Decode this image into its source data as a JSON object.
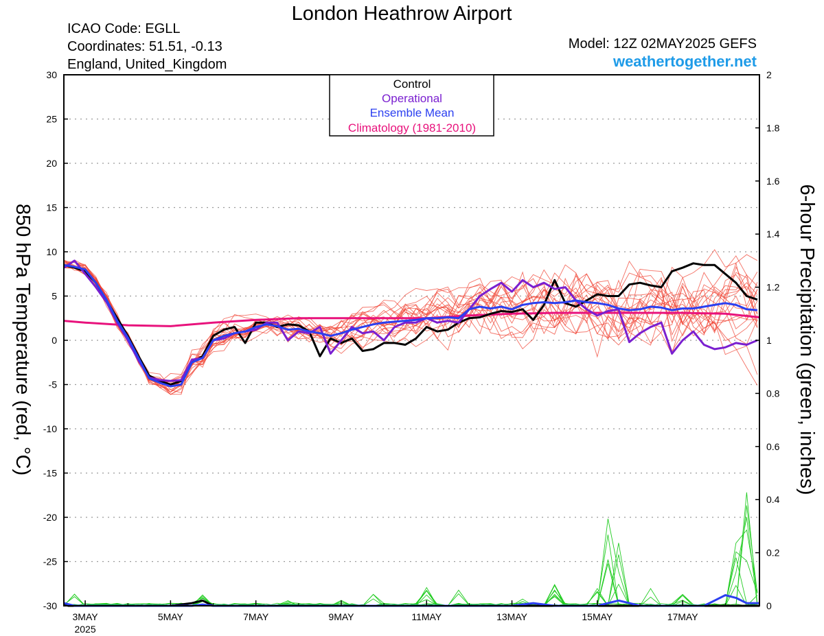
{
  "header": {
    "title": "London Heathrow Airport",
    "icao": "ICAO Code: EGLL",
    "coords": "Coordinates: 51.51, -0.13",
    "region": "England, United_Kingdom",
    "model": "Model: 12Z 02MAY2025 GEFS",
    "site": "weathertogether.net"
  },
  "legend": {
    "control": "Control",
    "operational": "Operational",
    "ensemble_mean": "Ensemble Mean",
    "climatology": "Climatology (1981-2010)"
  },
  "colors": {
    "control": "#000000",
    "operational": "#7a1fd0",
    "ensemble_mean": "#2b3ff0",
    "climatology": "#e8127c",
    "members": "#f04030",
    "precip": "#22cc22",
    "site": "#1e9be8"
  },
  "chart_data": {
    "type": "line",
    "ylabel_left": "850 hPa Temperature (red, °C)",
    "ylabel_right": "6-hour Precipitation (green, inches)",
    "y_left_range": [
      -30,
      30
    ],
    "y_left_ticks": [
      "30",
      "25",
      "20",
      "15",
      "10",
      "5",
      "0",
      "-5",
      "-10",
      "-15",
      "-20",
      "-25",
      "-30"
    ],
    "y_right_range": [
      0,
      2
    ],
    "y_right_ticks": [
      "2",
      "1.8",
      "1.6",
      "1.4",
      "1.2",
      "1",
      "0.8",
      "0.6",
      "0.4",
      "0.2",
      "0"
    ],
    "x_ticks": [
      "3MAY",
      "5MAY",
      "7MAY",
      "9MAY",
      "11MAY",
      "13MAY",
      "15MAY",
      "17MAY"
    ],
    "x_sub": "2025",
    "x_range_days": [
      2.5,
      18.8
    ],
    "grid": true,
    "control_x": [
      2.5,
      2.75,
      3.0,
      3.25,
      3.5,
      3.75,
      4.0,
      4.25,
      4.5,
      4.75,
      5.0,
      5.25,
      5.5,
      5.75,
      6.0,
      6.25,
      6.5,
      6.75,
      7.0,
      7.25,
      7.5,
      7.75,
      8.0,
      8.25,
      8.5,
      8.75,
      9.0,
      9.25,
      9.5,
      9.75,
      10.0,
      10.25,
      10.5,
      10.75,
      11.0,
      11.25,
      11.5,
      11.75,
      12.0,
      12.25,
      12.5,
      12.75,
      13.0,
      13.25,
      13.5,
      13.75,
      14.0,
      14.25,
      14.5,
      14.75,
      15.0,
      15.25,
      15.5,
      15.75,
      16.0,
      16.25,
      16.5,
      16.75,
      17.0,
      17.25,
      17.5,
      17.75,
      18.0,
      18.25,
      18.5,
      18.75
    ],
    "control": [
      8.5,
      8.2,
      7.8,
      6.5,
      4.5,
      2.5,
      0.5,
      -1.8,
      -4.0,
      -4.6,
      -5.0,
      -4.6,
      -2.5,
      -1.8,
      0.5,
      1.2,
      1.5,
      -0.3,
      2.0,
      2.0,
      1.5,
      1.8,
      1.7,
      1.0,
      -1.8,
      0.2,
      -0.3,
      0.2,
      -1.2,
      -1.0,
      -0.3,
      -0.3,
      -0.5,
      0.2,
      1.5,
      1.0,
      1.2,
      2.0,
      2.5,
      2.6,
      3.0,
      3.3,
      3.2,
      3.5,
      2.3,
      4.0,
      6.8,
      4.2,
      3.8,
      4.5,
      5.2,
      5.0,
      5.0,
      6.3,
      6.5,
      6.2,
      6.0,
      7.8,
      8.2,
      8.7,
      8.5,
      8.5,
      7.5,
      6.5,
      5.0,
      4.6
    ],
    "operational": [
      8.2,
      9.0,
      7.5,
      6.0,
      4.3,
      2.0,
      0.0,
      -2.3,
      -4.2,
      -4.5,
      -4.6,
      -4.5,
      -2.2,
      -2.0,
      0.0,
      0.2,
      0.8,
      1.0,
      1.2,
      2.0,
      2.0,
      0.0,
      1.0,
      0.8,
      1.5,
      -1.5,
      0.0,
      1.5,
      0.8,
      1.0,
      0.0,
      1.5,
      2.0,
      2.0,
      2.5,
      2.0,
      2.2,
      2.0,
      3.5,
      5.0,
      5.8,
      6.5,
      5.5,
      6.8,
      6.0,
      6.5,
      5.8,
      6.0,
      4.5,
      3.5,
      2.8,
      3.3,
      3.5,
      -0.2,
      0.8,
      1.5,
      2.0,
      -1.5,
      0.0,
      1.0,
      -0.5,
      -1.0,
      -0.8,
      -0.3,
      -0.5,
      0.0
    ],
    "ensemble_mean": [
      8.5,
      8.3,
      8.0,
      6.5,
      4.6,
      2.2,
      0.3,
      -2.0,
      -4.3,
      -4.8,
      -5.2,
      -5.0,
      -2.5,
      -2.0,
      0.0,
      0.5,
      0.8,
      1.0,
      1.5,
      1.8,
      1.6,
      1.2,
      1.3,
      1.0,
      0.8,
      0.5,
      0.8,
      1.2,
      1.5,
      1.8,
      2.0,
      2.1,
      2.2,
      2.3,
      2.5,
      2.5,
      2.6,
      2.5,
      3.5,
      3.8,
      3.6,
      3.8,
      3.5,
      4.0,
      4.2,
      4.3,
      4.2,
      4.3,
      4.5,
      4.3,
      4.2,
      4.0,
      3.6,
      3.4,
      3.5,
      3.8,
      3.7,
      3.4,
      3.6,
      3.6,
      3.8,
      4.0,
      4.2,
      4.0,
      3.5,
      3.4
    ],
    "climatology_x": [
      2.5,
      3.0,
      4.0,
      5.0,
      6.0,
      7.0,
      8.0,
      9.0,
      10.0,
      11.0,
      12.0,
      13.0,
      14.0,
      15.0,
      16.0,
      17.0,
      18.0,
      18.8
    ],
    "climatology": [
      2.2,
      2.0,
      1.7,
      1.6,
      2.0,
      2.3,
      2.5,
      2.5,
      2.5,
      2.5,
      2.8,
      3.0,
      3.1,
      3.1,
      3.1,
      3.1,
      3.0,
      2.6
    ],
    "mean_precip_x": [
      2.5,
      2.75,
      3.0,
      3.5,
      4.0,
      4.5,
      5.0,
      5.5,
      5.75,
      6.0,
      6.5,
      7.0,
      8.0,
      9.0,
      10.0,
      11.0,
      12.0,
      13.0,
      13.5,
      14.0,
      14.5,
      15.0,
      15.25,
      15.5,
      15.75,
      16.0,
      16.5,
      17.0,
      17.25,
      17.5,
      17.75,
      18.0,
      18.25,
      18.5,
      18.8
    ],
    "mean_precip": [
      0.01,
      0.0,
      0.0,
      0.0,
      0.0,
      0.0,
      0.0,
      0.0,
      0.005,
      0.0,
      0.0,
      0.0,
      0.0,
      0.0,
      0.0,
      0.0,
      0.0,
      0.0,
      0.01,
      0.0,
      0.0,
      0.0,
      0.01,
      0.02,
      0.01,
      0.0,
      0.0,
      0.0,
      0.0,
      0.0,
      0.02,
      0.04,
      0.03,
      0.01,
      0.01
    ],
    "control_precip_x": [
      2.5,
      2.6,
      2.8,
      3.0,
      5.0,
      5.5,
      5.75,
      6.0,
      18.8
    ],
    "control_precip": [
      0.01,
      0.0,
      0.0,
      0.0,
      0.0,
      0.01,
      0.02,
      0.0,
      0.0
    ]
  }
}
